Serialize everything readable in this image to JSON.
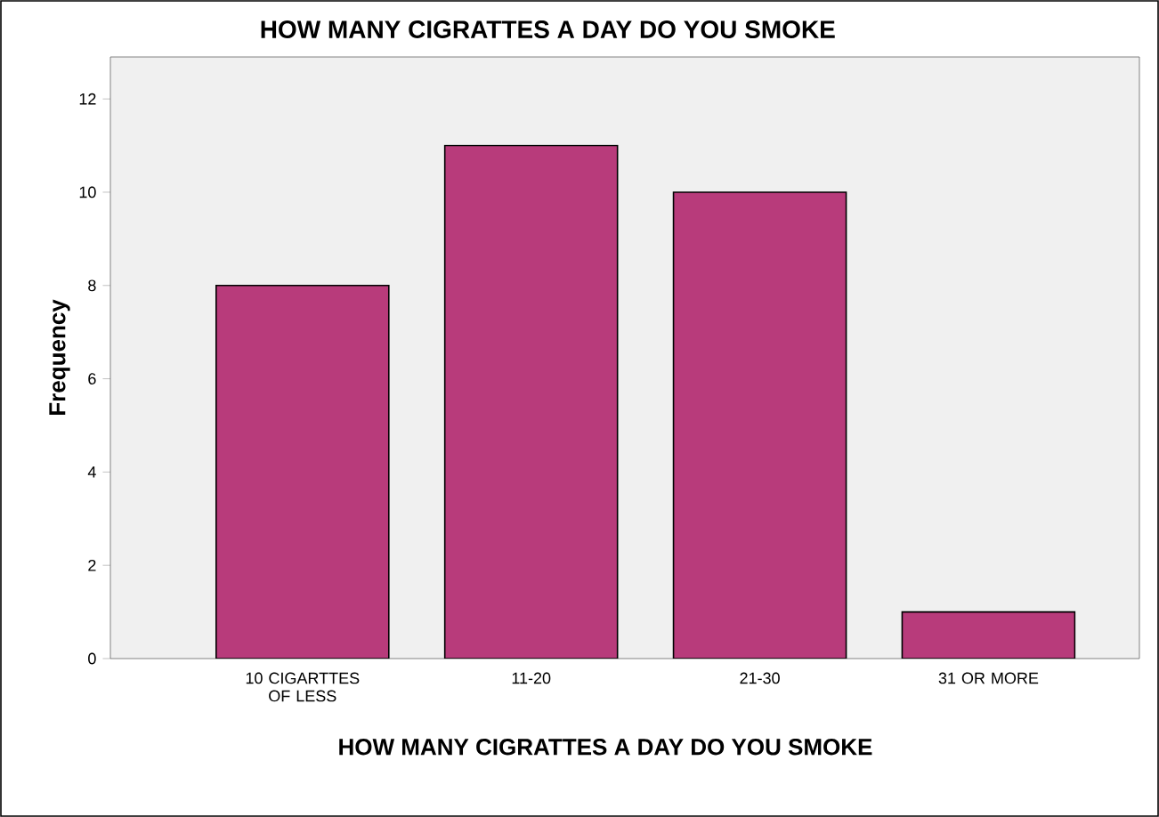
{
  "chart_data": {
    "type": "bar",
    "title": "HOW MANY CIGRATTES A DAY DO YOU SMOKE",
    "xlabel": "HOW MANY CIGRATTES A DAY DO YOU SMOKE",
    "ylabel": "Frequency",
    "categories": [
      "10 CIGARTTES OF LESS",
      "11-20",
      "21-30",
      "31 OR MORE"
    ],
    "values": [
      8,
      11,
      10,
      1
    ],
    "color": "#b83b7b",
    "ylim": [
      0,
      12.9
    ],
    "yticks": [
      0,
      2,
      4,
      6,
      8,
      10,
      12
    ]
  }
}
